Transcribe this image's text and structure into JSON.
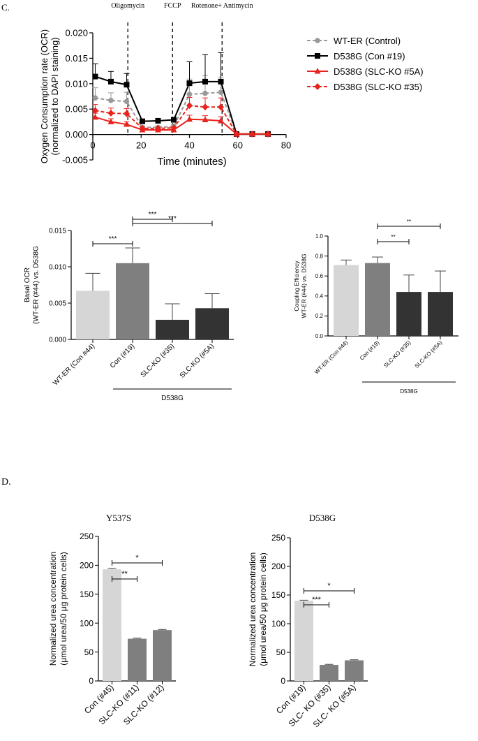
{
  "panel_c_label": "C.",
  "panel_d_label": "D.",
  "d_subtitles": [
    "Y537S",
    "D538G"
  ],
  "colors": {
    "wt": "#999999",
    "con": "#000000",
    "red": "#e8221c",
    "light_bar": "#d6d6d6",
    "mid_bar": "#7f7f7f",
    "dark_bar": "#333333"
  },
  "chart_data": [
    {
      "type": "line",
      "title": "",
      "xlabel": "Time (minutes)",
      "ylabel_lines": [
        "Oxygen Consumption rate (OCR)",
        "(normalized to DAPI staining)"
      ],
      "xlim": [
        0,
        80
      ],
      "ylim": [
        -0.005,
        0.02
      ],
      "xticks": [
        "0",
        "20",
        "40",
        "60",
        "80"
      ],
      "yticks": [
        "-0.005",
        "0.000",
        "0.005",
        "0.010",
        "0.015",
        "0.020"
      ],
      "x": [
        1,
        7.5,
        14,
        20.5,
        27,
        33.5,
        40,
        46.5,
        53,
        59.5,
        66,
        72.5
      ],
      "injections": [
        {
          "label": "Oligomycin",
          "x": 14.5
        },
        {
          "label": "FCCP",
          "x": 33
        },
        {
          "label": "Rotenone+ Antimycin",
          "x": 53.5
        }
      ],
      "series": [
        {
          "name": "WT-ER (Control)",
          "marker": "circle",
          "dashed": true,
          "values": [
            0.0072,
            0.0067,
            0.0065,
            0.0014,
            0.0014,
            0.0016,
            0.0079,
            0.0081,
            0.0083,
            0.0001,
            0.0001,
            0.0001
          ],
          "errors": [
            0.002,
            0.0015,
            0.0018,
            0.0003,
            0.0003,
            0.0003,
            0.003,
            0.0035,
            0.003,
            0.0001,
            0.0001,
            0.0001
          ]
        },
        {
          "name": "D538G (Con #19)",
          "marker": "square",
          "dashed": false,
          "values": [
            0.0114,
            0.0104,
            0.0098,
            0.0026,
            0.0027,
            0.0029,
            0.0101,
            0.0104,
            0.0104,
            0.0001,
            0.0001,
            0.0001
          ],
          "errors": [
            0.0025,
            0.002,
            0.0022,
            0.0003,
            0.0003,
            0.0003,
            0.0042,
            0.0053,
            0.0057,
            0.0001,
            0.0001,
            0.0001
          ]
        },
        {
          "name": "D538G (SLC-KO #5A)",
          "marker": "triangle",
          "dashed": false,
          "values": [
            0.0034,
            0.0025,
            0.002,
            0.0009,
            0.0009,
            0.0009,
            0.003,
            0.0029,
            0.0027,
            0.0001,
            0.0001,
            0.0001
          ],
          "errors": [
            0.0008,
            0.0006,
            0.0005,
            0.0002,
            0.0002,
            0.0002,
            0.0008,
            0.0008,
            0.0008,
            0.0001,
            0.0001,
            0.0001
          ]
        },
        {
          "name": "D538G (SLC-KO #35)",
          "marker": "diamond",
          "dashed": true,
          "values": [
            0.0047,
            0.0042,
            0.0041,
            0.0012,
            0.0012,
            0.0013,
            0.0057,
            0.0054,
            0.0054,
            0.0001,
            0.0001,
            0.0001
          ],
          "errors": [
            0.0012,
            0.001,
            0.001,
            0.0002,
            0.0002,
            0.0002,
            0.0016,
            0.0018,
            0.0018,
            0.0001,
            0.0001,
            0.0001
          ]
        }
      ]
    },
    {
      "type": "bar",
      "ylabel_lines": [
        "Basal OCR",
        "(WT-ER (#44) vs. D538G"
      ],
      "ylim": [
        0,
        0.015
      ],
      "yticks": [
        "0.000",
        "0.005",
        "0.010",
        "0.015"
      ],
      "categories": [
        "WT-ER (Con #44)",
        "Con (#19)",
        "SLC-KO (#35)",
        "SLC-KO (#5A)"
      ],
      "values": [
        0.0067,
        0.0105,
        0.0027,
        0.0043
      ],
      "errors": [
        0.0024,
        0.0021,
        0.0022,
        0.002
      ],
      "group_label": "D538G",
      "significance": [
        {
          "from": 0,
          "to": 1,
          "label": "***"
        },
        {
          "from": 1,
          "to": 2,
          "label": "***"
        },
        {
          "from": 1,
          "to": 3,
          "label": "***"
        }
      ]
    },
    {
      "type": "bar",
      "ylabel_lines": [
        "Coupling Efficiency",
        "WT-ER (#44) vs. D538G"
      ],
      "ylim": [
        0,
        1.0
      ],
      "yticks": [
        "0.0",
        "0.2",
        "0.4",
        "0.6",
        "0.8",
        "1.0"
      ],
      "categories": [
        "WT-ER (Con #44)",
        "Con (#19)",
        "SLC-KO (#35)",
        "SLC-KO (#5A)"
      ],
      "values": [
        0.71,
        0.73,
        0.44,
        0.44
      ],
      "errors": [
        0.05,
        0.06,
        0.17,
        0.21
      ],
      "group_label": "D538G",
      "significance": [
        {
          "from": 1,
          "to": 2,
          "label": "**"
        },
        {
          "from": 1,
          "to": 3,
          "label": "**"
        }
      ]
    },
    {
      "type": "bar",
      "title": "Y537S",
      "ylabel_lines": [
        "Normalized urea concentration",
        "(μmol urea/50 μg protein cells)"
      ],
      "ylim": [
        0,
        250
      ],
      "yticks": [
        "0",
        "50",
        "100",
        "150",
        "200",
        "250"
      ],
      "categories": [
        "Con (#45)",
        "SLC-KO (#11)",
        "SLC-KO (#12)"
      ],
      "values": [
        193,
        73,
        88
      ],
      "errors": [
        1.5,
        1,
        1
      ],
      "significance": [
        {
          "from": 0,
          "to": 1,
          "label": "**"
        },
        {
          "from": 0,
          "to": 2,
          "label": "*"
        }
      ]
    },
    {
      "type": "bar",
      "title": "D538G",
      "ylabel_lines": [
        "Normalized urea concentration",
        "(μmol urea/50 μg protein cells)"
      ],
      "ylim": [
        0,
        250
      ],
      "yticks": [
        "0",
        "50",
        "100",
        "150",
        "200",
        "250"
      ],
      "categories": [
        "Con (#19)",
        "SLC- KO (#35)",
        "SLC- KO (#5A)"
      ],
      "values": [
        140,
        28,
        36
      ],
      "errors": [
        1,
        1,
        1
      ],
      "significance": [
        {
          "from": 0,
          "to": 1,
          "label": "***"
        },
        {
          "from": 0,
          "to": 2,
          "label": "*"
        }
      ]
    }
  ]
}
